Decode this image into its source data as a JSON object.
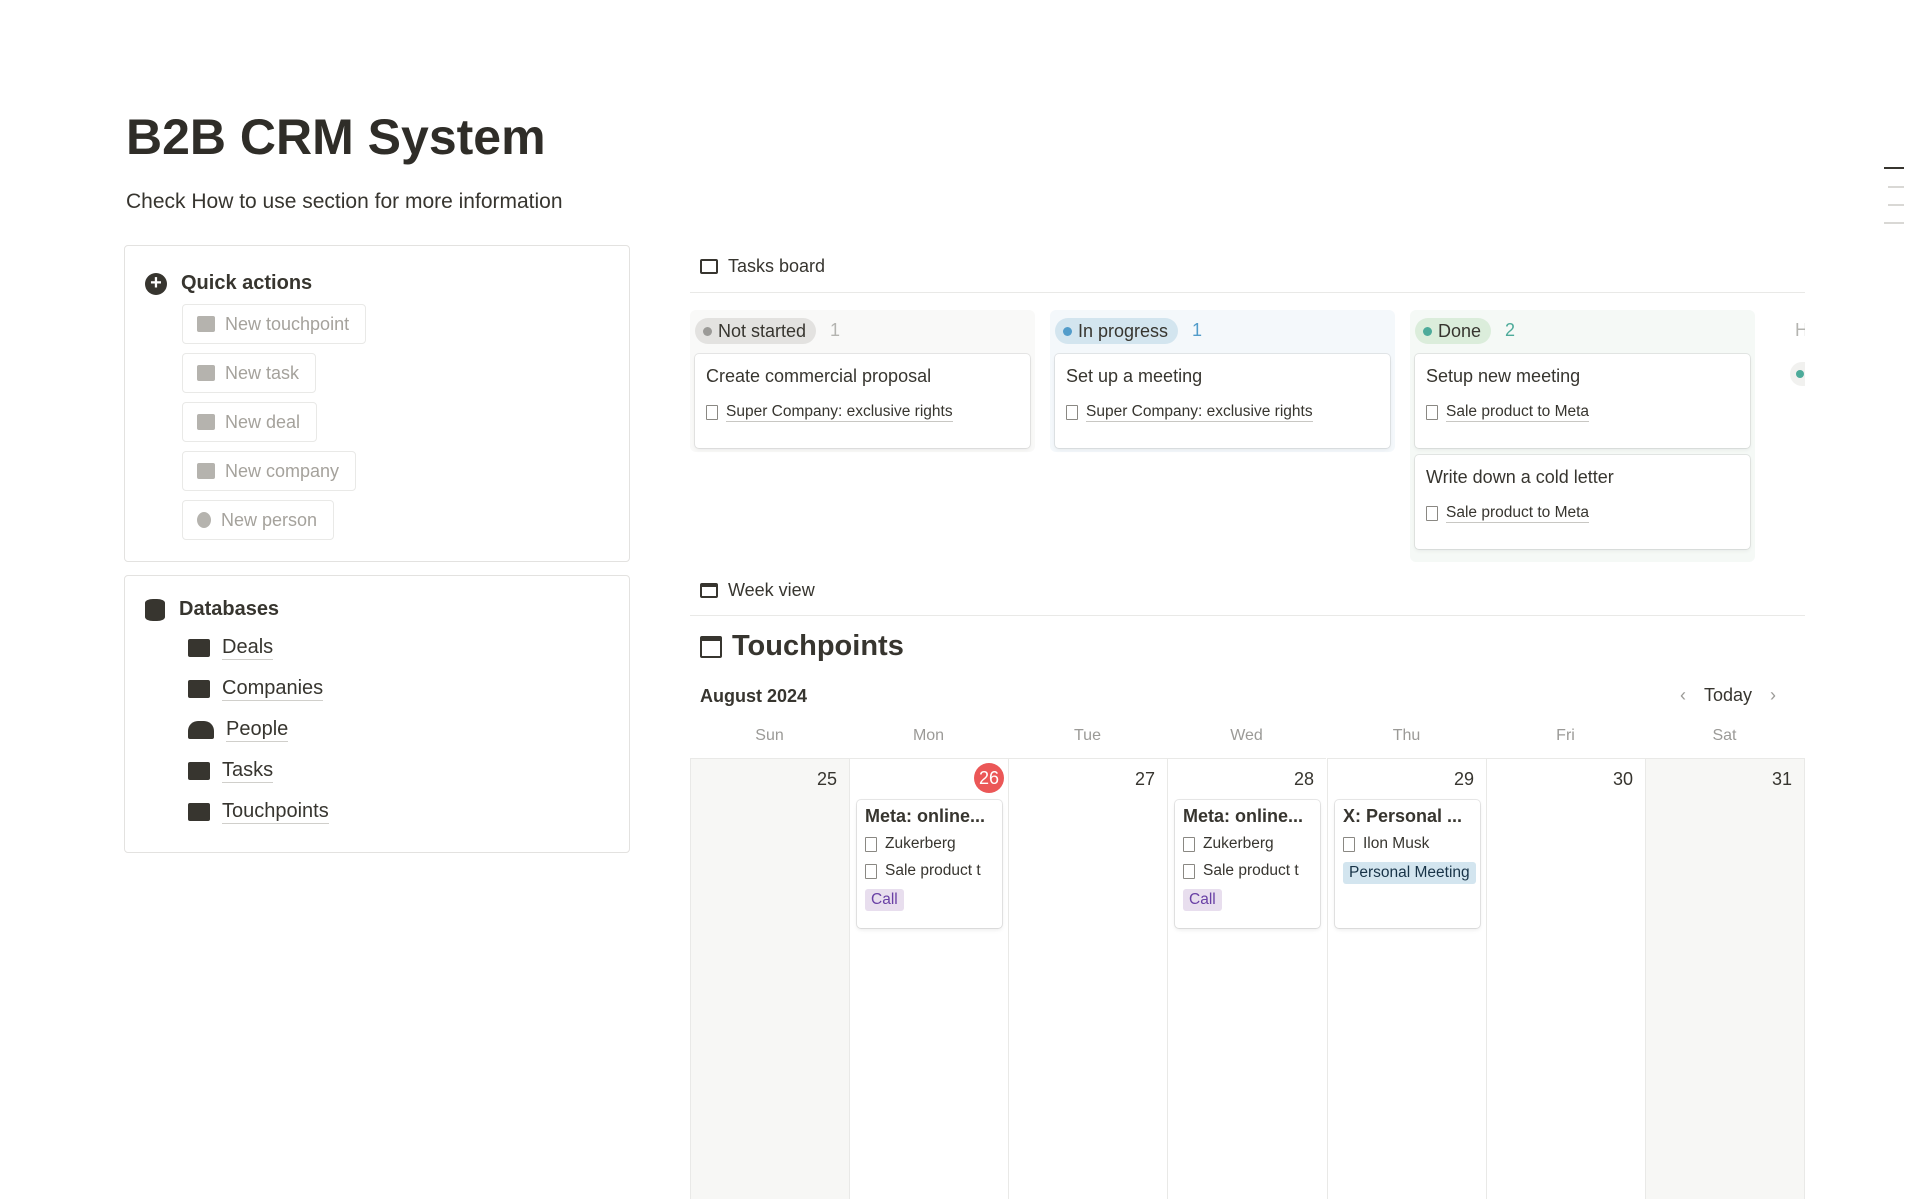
{
  "page": {
    "title": "B2B CRM System",
    "subtitle": "Check How to use section for more information"
  },
  "quick_actions": {
    "title": "Quick actions",
    "items": [
      {
        "label": "New touchpoint",
        "icon": "calendar-icon"
      },
      {
        "label": "New task",
        "icon": "checkbox-icon"
      },
      {
        "label": "New deal",
        "icon": "briefcase-icon"
      },
      {
        "label": "New company",
        "icon": "bank-icon"
      },
      {
        "label": "New person",
        "icon": "person-icon"
      }
    ]
  },
  "databases": {
    "title": "Databases",
    "items": [
      {
        "label": "Deals",
        "icon": "briefcase-icon"
      },
      {
        "label": "Companies",
        "icon": "bank-icon"
      },
      {
        "label": "People",
        "icon": "people-icon"
      },
      {
        "label": "Tasks",
        "icon": "checkbox-icon"
      },
      {
        "label": "Touchpoints",
        "icon": "calendar-icon"
      }
    ]
  },
  "tasks_board": {
    "title": "Tasks board",
    "columns": [
      {
        "status": "Not started",
        "count": "1",
        "color": "#9b9a97",
        "cards": [
          {
            "title": "Create commercial proposal",
            "relation": "Super Company: exclusive rights"
          }
        ]
      },
      {
        "status": "In progress",
        "count": "1",
        "color": "#529cca",
        "cards": [
          {
            "title": "Set up a meeting",
            "relation": "Super Company: exclusive rights"
          }
        ]
      },
      {
        "status": "Done",
        "count": "2",
        "color": "#4dab9a",
        "cards": [
          {
            "title": "Setup new meeting",
            "relation": "Sale product to Meta"
          },
          {
            "title": "Write down a cold letter",
            "relation": "Sale product to Meta"
          }
        ]
      }
    ],
    "hidden_column_initial": "H"
  },
  "week_view": {
    "title": "Week view",
    "calendar_title": "Touchpoints",
    "month": "August 2024",
    "today_label": "Today",
    "days": [
      "Sun",
      "Mon",
      "Tue",
      "Wed",
      "Thu",
      "Fri",
      "Sat"
    ],
    "dates": [
      "25",
      "26",
      "27",
      "28",
      "29",
      "30",
      "31"
    ],
    "events": {
      "mon": {
        "title": "Meta: online...",
        "person": "Zukerberg",
        "deal": "Sale product t",
        "tag": "Call"
      },
      "wed": {
        "title": "Meta: online...",
        "person": "Zukerberg",
        "deal": "Sale product t",
        "tag": "Call"
      },
      "thu": {
        "title": "X: Personal ...",
        "person": "Ilon Musk",
        "tag": "Personal Meeting"
      }
    }
  }
}
